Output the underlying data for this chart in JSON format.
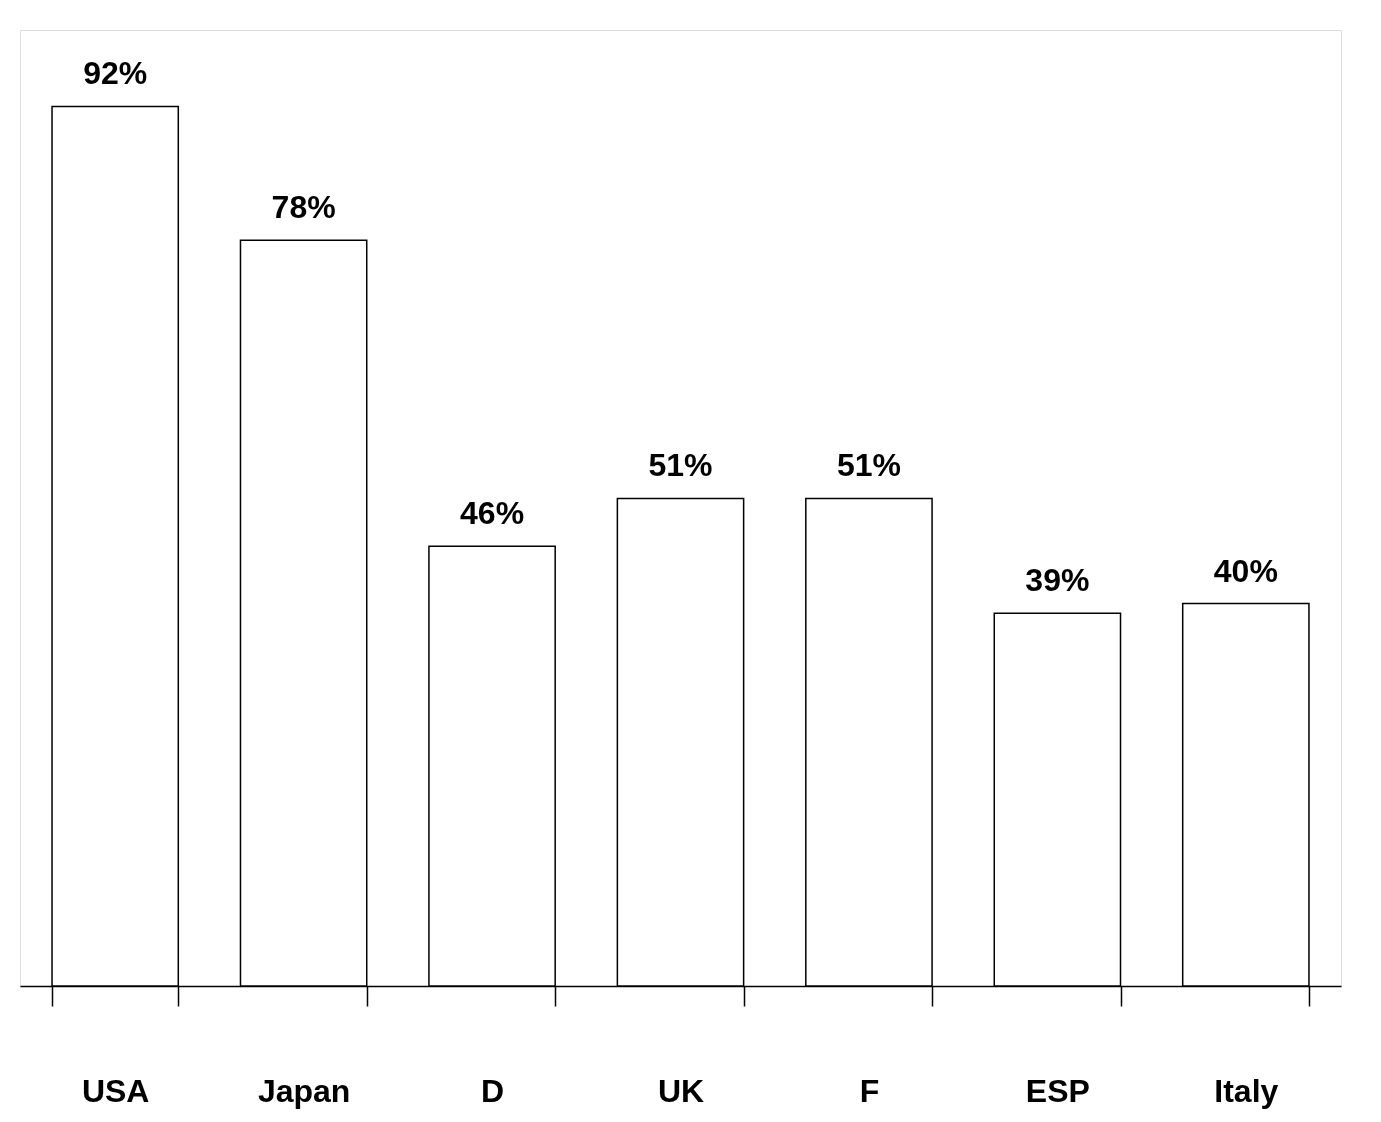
{
  "chart_data": {
    "type": "bar",
    "categories": [
      "USA",
      "Japan",
      "D",
      "UK",
      "F",
      "ESP",
      "Italy"
    ],
    "values": [
      92,
      78,
      46,
      51,
      51,
      39,
      40
    ],
    "value_labels": [
      "92%",
      "78%",
      "46%",
      "51%",
      "51%",
      "39%",
      "40%"
    ],
    "color": "#ffffff",
    "tick_labels": "x",
    "grid": false
  }
}
